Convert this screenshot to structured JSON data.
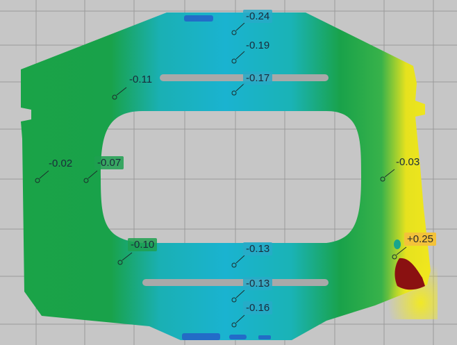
{
  "measurements": [
    {
      "id": "m1",
      "value": "-0.24",
      "style": "box"
    },
    {
      "id": "m2",
      "value": "-0.19",
      "style": "plain"
    },
    {
      "id": "m3",
      "value": "-0.17",
      "style": "box"
    },
    {
      "id": "m4",
      "value": "-0.11",
      "style": "plain"
    },
    {
      "id": "m5",
      "value": "-0.02",
      "style": "plain"
    },
    {
      "id": "m6",
      "value": "-0.07",
      "style": "boxg"
    },
    {
      "id": "m7",
      "value": "-0.03",
      "style": "plain"
    },
    {
      "id": "m8",
      "value": "-0.10",
      "style": "boxg"
    },
    {
      "id": "m9",
      "value": "-0.13",
      "style": "box"
    },
    {
      "id": "m10",
      "value": "+0.25",
      "style": "warn"
    },
    {
      "id": "m11",
      "value": "-0.13",
      "style": "box"
    },
    {
      "id": "m12",
      "value": "-0.16",
      "style": "box"
    }
  ],
  "colors": {
    "background": "#c6c6c6",
    "grid": "#9a9a9a",
    "green": "#19a24a",
    "cyan": "#1ab3d0",
    "yellow": "#f0e61e",
    "red": "#8a1111",
    "bar": "#a9a9a9"
  }
}
